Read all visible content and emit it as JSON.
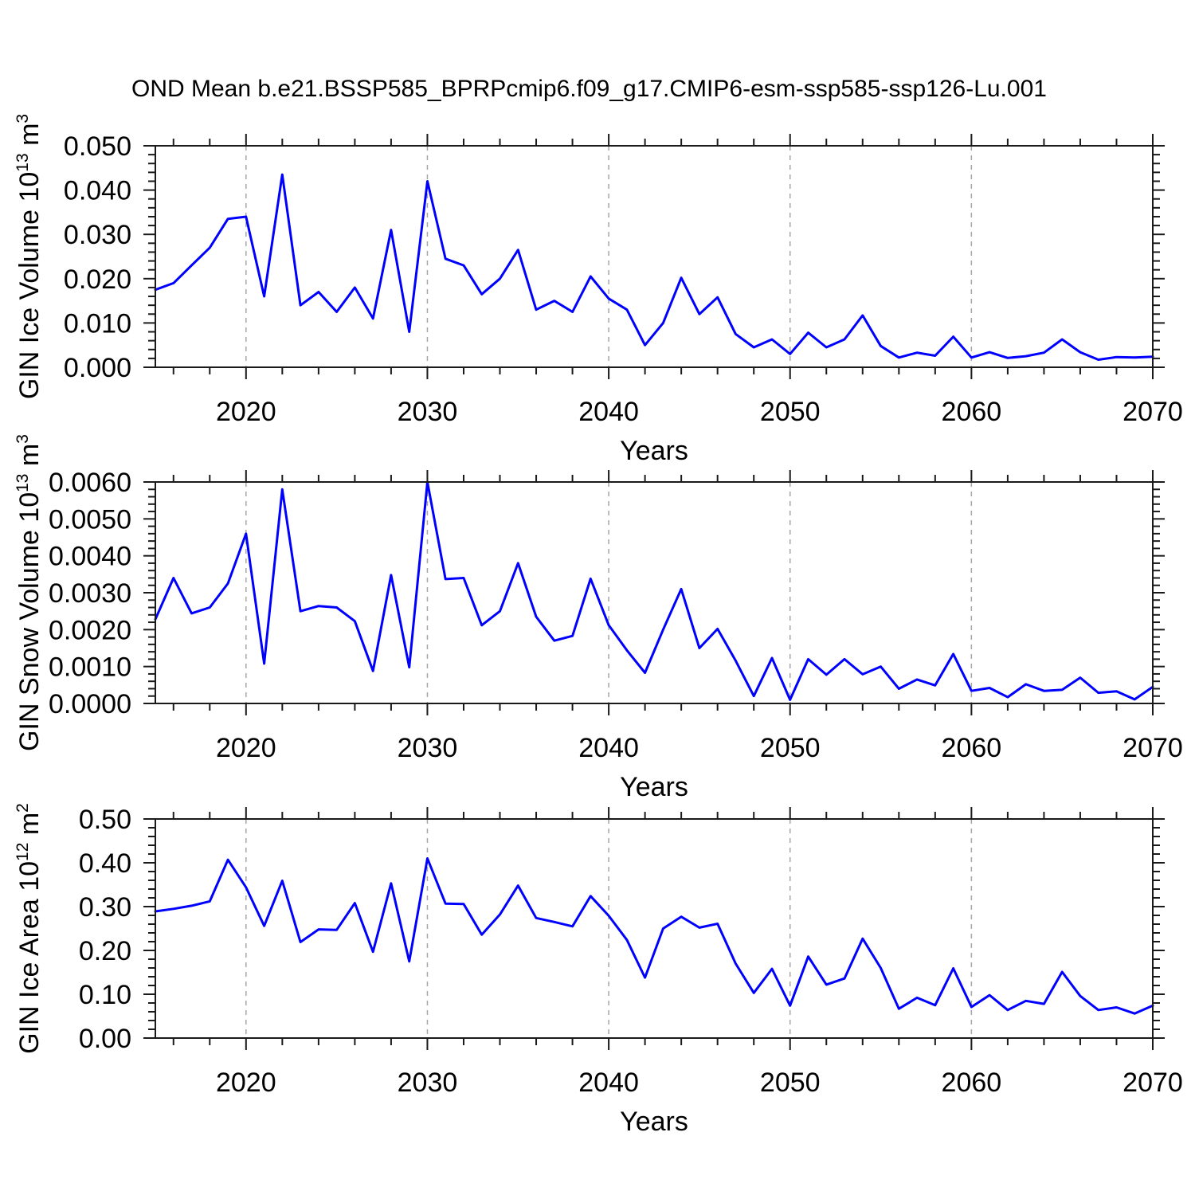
{
  "title": "OND Mean b.e21.BSSP585_BPRPcmip6.f09_g17.CMIP6-esm-ssp585-ssp126-Lu.001",
  "colors": {
    "line": "#0000ff",
    "grid": "#a6a6a6",
    "frame": "#1a1a1a",
    "text": "#000000"
  },
  "years": [
    2015,
    2016,
    2017,
    2018,
    2019,
    2020,
    2021,
    2022,
    2023,
    2024,
    2025,
    2026,
    2027,
    2028,
    2029,
    2030,
    2031,
    2032,
    2033,
    2034,
    2035,
    2036,
    2037,
    2038,
    2039,
    2040,
    2041,
    2042,
    2043,
    2044,
    2045,
    2046,
    2047,
    2048,
    2049,
    2050,
    2051,
    2052,
    2053,
    2054,
    2055,
    2056,
    2057,
    2058,
    2059,
    2060,
    2061,
    2062,
    2063,
    2064,
    2065,
    2066,
    2067,
    2068,
    2069,
    2070
  ],
  "chart_data": [
    {
      "type": "line",
      "title": "",
      "xlabel": "Years",
      "ylabel": "GIN Ice Volume 10^13 m^3",
      "ylabel_parts": [
        {
          "t": "GIN Ice Volume 10"
        },
        {
          "t": "13",
          "sup": true
        },
        {
          "t": " m"
        },
        {
          "t": "3",
          "sup": true
        }
      ],
      "x_range": [
        2015,
        2070
      ],
      "ylim": [
        0,
        0.05
      ],
      "y_major_ticks": [
        {
          "v": 0.0,
          "label": "0.000"
        },
        {
          "v": 0.01,
          "label": "0.010"
        },
        {
          "v": 0.02,
          "label": "0.020"
        },
        {
          "v": 0.03,
          "label": "0.030"
        },
        {
          "v": 0.04,
          "label": "0.040"
        },
        {
          "v": 0.05,
          "label": "0.050"
        }
      ],
      "y_minor_step": 0.002,
      "x_major_ticks": [
        {
          "v": 2020,
          "label": "2020"
        },
        {
          "v": 2030,
          "label": "2030"
        },
        {
          "v": 2040,
          "label": "2040"
        },
        {
          "v": 2050,
          "label": "2050"
        },
        {
          "v": 2060,
          "label": "2060"
        },
        {
          "v": 2070,
          "label": "2070"
        }
      ],
      "x_minor_start": 2016,
      "x_minor_step": 2,
      "x_gridlines": [
        2020,
        2030,
        2040,
        2050,
        2060
      ],
      "grid_on": true,
      "legend": "none",
      "values": [
        0.0175,
        0.019,
        0.023,
        0.027,
        0.0335,
        0.034,
        0.016,
        0.0435,
        0.014,
        0.017,
        0.0125,
        0.018,
        0.011,
        0.031,
        0.008,
        0.042,
        0.0245,
        0.023,
        0.0165,
        0.02,
        0.0265,
        0.013,
        0.015,
        0.0125,
        0.0205,
        0.0155,
        0.013,
        0.005,
        0.01,
        0.0202,
        0.012,
        0.0158,
        0.0075,
        0.0045,
        0.0063,
        0.003,
        0.0078,
        0.0045,
        0.0063,
        0.0117,
        0.0048,
        0.0022,
        0.0033,
        0.0026,
        0.0069,
        0.0022,
        0.0034,
        0.0021,
        0.0025,
        0.0033,
        0.0063,
        0.0034,
        0.0017,
        0.0023,
        0.0022,
        0.0024
      ]
    },
    {
      "type": "line",
      "title": "",
      "xlabel": "Years",
      "ylabel": "GIN Snow Volume 10^13 m^3",
      "ylabel_parts": [
        {
          "t": "GIN Snow Volume 10"
        },
        {
          "t": "13",
          "sup": true
        },
        {
          "t": " m"
        },
        {
          "t": "3",
          "sup": true
        }
      ],
      "x_range": [
        2015,
        2070
      ],
      "ylim": [
        0,
        0.006
      ],
      "y_major_ticks": [
        {
          "v": 0.0,
          "label": "0.0000"
        },
        {
          "v": 0.001,
          "label": "0.0010"
        },
        {
          "v": 0.002,
          "label": "0.0020"
        },
        {
          "v": 0.003,
          "label": "0.0030"
        },
        {
          "v": 0.004,
          "label": "0.0040"
        },
        {
          "v": 0.005,
          "label": "0.0050"
        },
        {
          "v": 0.006,
          "label": "0.0060"
        }
      ],
      "y_minor_step": 0.0002,
      "x_major_ticks": [
        {
          "v": 2020,
          "label": "2020"
        },
        {
          "v": 2030,
          "label": "2030"
        },
        {
          "v": 2040,
          "label": "2040"
        },
        {
          "v": 2050,
          "label": "2050"
        },
        {
          "v": 2060,
          "label": "2060"
        },
        {
          "v": 2070,
          "label": "2070"
        }
      ],
      "x_minor_start": 2016,
      "x_minor_step": 2,
      "x_gridlines": [
        2020,
        2030,
        2040,
        2050,
        2060
      ],
      "grid_on": true,
      "legend": "none",
      "values": [
        0.00228,
        0.0034,
        0.00244,
        0.0026,
        0.00325,
        0.0046,
        0.00108,
        0.0058,
        0.0025,
        0.00264,
        0.0026,
        0.00223,
        0.00088,
        0.00348,
        0.00098,
        0.006,
        0.00337,
        0.0034,
        0.00212,
        0.0025,
        0.0038,
        0.00235,
        0.0017,
        0.00183,
        0.00338,
        0.00212,
        0.00144,
        0.00083,
        0.002,
        0.0031,
        0.0015,
        0.00202,
        0.00116,
        0.0002,
        0.00123,
        0.0001,
        0.0012,
        0.00078,
        0.0012,
        0.00079,
        0.001,
        0.0004,
        0.00065,
        0.00049,
        0.00134,
        0.00034,
        0.00042,
        0.00017,
        0.00052,
        0.00034,
        0.00037,
        0.0007,
        0.00029,
        0.00033,
        0.00011,
        0.00045
      ]
    },
    {
      "type": "line",
      "title": "",
      "xlabel": "Years",
      "ylabel": "GIN Ice Area 10^12 m^2",
      "ylabel_parts": [
        {
          "t": "GIN Ice Area 10"
        },
        {
          "t": "12",
          "sup": true
        },
        {
          "t": " m"
        },
        {
          "t": "2",
          "sup": true
        }
      ],
      "x_range": [
        2015,
        2070
      ],
      "ylim": [
        0,
        0.5
      ],
      "y_major_ticks": [
        {
          "v": 0.0,
          "label": "0.00"
        },
        {
          "v": 0.1,
          "label": "0.10"
        },
        {
          "v": 0.2,
          "label": "0.20"
        },
        {
          "v": 0.3,
          "label": "0.30"
        },
        {
          "v": 0.4,
          "label": "0.40"
        },
        {
          "v": 0.5,
          "label": "0.50"
        }
      ],
      "y_minor_step": 0.02,
      "x_major_ticks": [
        {
          "v": 2020,
          "label": "2020"
        },
        {
          "v": 2030,
          "label": "2030"
        },
        {
          "v": 2040,
          "label": "2040"
        },
        {
          "v": 2050,
          "label": "2050"
        },
        {
          "v": 2060,
          "label": "2060"
        },
        {
          "v": 2070,
          "label": "2070"
        }
      ],
      "x_minor_start": 2016,
      "x_minor_step": 2,
      "x_gridlines": [
        2020,
        2030,
        2040,
        2050,
        2060
      ],
      "grid_on": true,
      "legend": "none",
      "values": [
        0.289,
        0.295,
        0.302,
        0.312,
        0.407,
        0.344,
        0.256,
        0.359,
        0.219,
        0.248,
        0.247,
        0.308,
        0.197,
        0.353,
        0.175,
        0.41,
        0.307,
        0.306,
        0.236,
        0.282,
        0.348,
        0.274,
        0.265,
        0.255,
        0.324,
        0.279,
        0.224,
        0.138,
        0.25,
        0.277,
        0.252,
        0.261,
        0.17,
        0.103,
        0.158,
        0.074,
        0.186,
        0.122,
        0.136,
        0.227,
        0.16,
        0.067,
        0.092,
        0.075,
        0.159,
        0.071,
        0.098,
        0.064,
        0.085,
        0.078,
        0.151,
        0.096,
        0.064,
        0.07,
        0.056,
        0.074
      ]
    }
  ]
}
